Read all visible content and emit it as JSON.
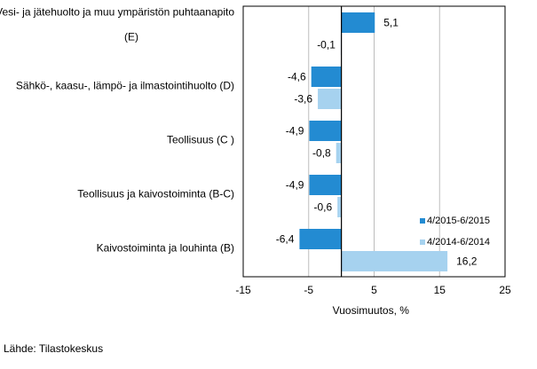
{
  "chart_data": {
    "type": "bar",
    "orientation": "horizontal",
    "categories": [
      "Vesi- ja jätehuolto ja muu ympäristön puhtaanapito (E)",
      "Sähkö-, kaasu-, lämpö- ja ilmastointihuolto (D)",
      "Teollisuus (C )",
      "Teollisuus ja kaivostoiminta (B-C)",
      "Kaivostoiminta ja louhinta (B)"
    ],
    "category_lines": [
      [
        "Vesi- ja jätehuolto ja muu ympäristön puhtaanapito",
        "(E)"
      ],
      [
        "Sähkö-, kaasu-, lämpö- ja ilmastointihuolto (D)"
      ],
      [
        "Teollisuus (C )"
      ],
      [
        "Teollisuus ja kaivostoiminta (B-C)"
      ],
      [
        "Kaivostoiminta ja louhinta (B)"
      ]
    ],
    "series": [
      {
        "name": "4/2015-6/2015",
        "color": "#238bd2",
        "values": [
          5.1,
          -4.6,
          -4.9,
          -4.9,
          -6.4
        ],
        "labels": [
          "5,1",
          "-4,6",
          "-4,9",
          "-4,9",
          "-6,4"
        ]
      },
      {
        "name": "4/2014-6/2014",
        "color": "#a6d2ef",
        "values": [
          -0.1,
          -3.6,
          -0.8,
          -0.6,
          16.2
        ],
        "labels": [
          "-0,1",
          "-3,6",
          "-0,8",
          "-0,6",
          "16,2"
        ]
      }
    ],
    "xlabel": "Vuosimuutos, %",
    "xlim": [
      -15,
      25
    ],
    "xticks": [
      -15,
      -5,
      5,
      15,
      25
    ],
    "xtick_labels": [
      "-15",
      "-5",
      "5",
      "15",
      "25"
    ],
    "grid": true,
    "legend": "right"
  },
  "source": "Lähde: Tilastokeskus"
}
